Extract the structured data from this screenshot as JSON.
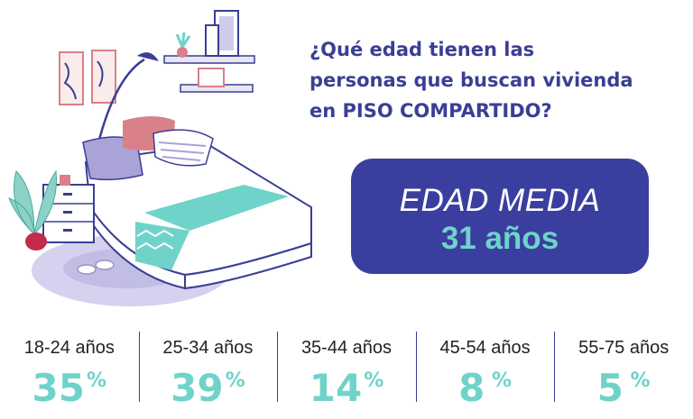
{
  "question": {
    "line1": "¿Qué edad tienen las",
    "line2": "personas que buscan vivienda",
    "line3": "en PISO COMPARTIDO?"
  },
  "badge": {
    "label": "EDAD MEDIA",
    "value": "31 años"
  },
  "stats": [
    {
      "range": "18-24 años",
      "value": "35",
      "unit": "%"
    },
    {
      "range": "25-34 años",
      "value": "39",
      "unit": "%"
    },
    {
      "range": "35-44 años",
      "value": "14",
      "unit": "%"
    },
    {
      "range": "45-54 años",
      "value": "8",
      "unit": "%"
    },
    {
      "range": "55-75 años",
      "value": "5",
      "unit": "%"
    }
  ],
  "colors": {
    "navy": "#3a3f9f",
    "teal": "#6fd3c9",
    "lavender": "#cfcbe8",
    "pink": "#d9808a"
  },
  "illustration": {
    "icon": "bedroom-illustration"
  }
}
